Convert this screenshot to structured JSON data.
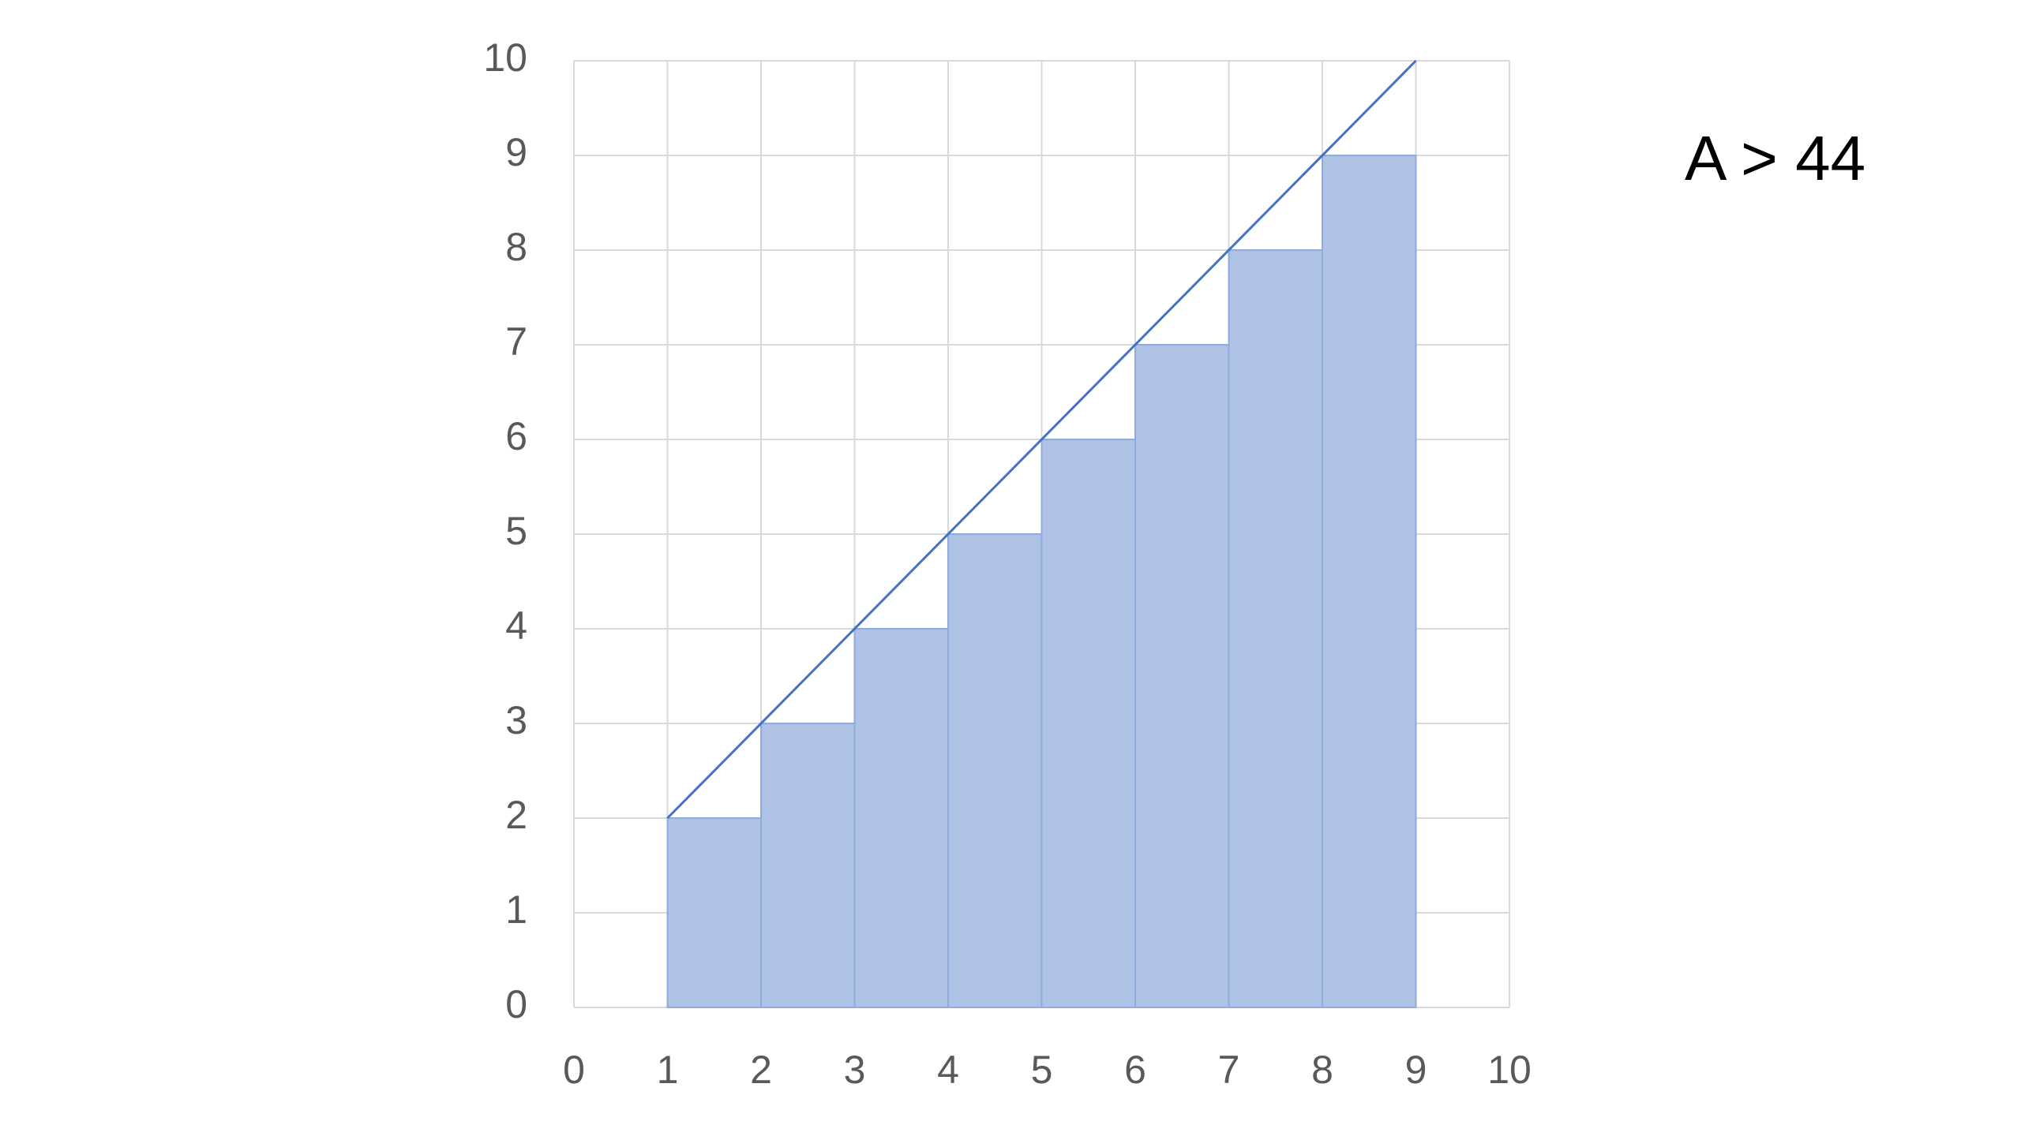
{
  "chart_data": {
    "type": "histogram",
    "bins": [
      1,
      2,
      3,
      4,
      5,
      6,
      7,
      8,
      9
    ],
    "values": [
      2,
      3,
      4,
      5,
      6,
      7,
      8,
      9
    ],
    "color": "#aec2e6",
    "line": {
      "type": "line",
      "x": [
        1,
        9
      ],
      "values": [
        2,
        10
      ],
      "color": "#4472c4"
    },
    "annotation": "A > 44",
    "xlim": [
      0,
      10
    ],
    "ylim": [
      0,
      10
    ],
    "xticks": [
      0,
      1,
      2,
      3,
      4,
      5,
      6,
      7,
      8,
      9,
      10
    ],
    "yticks": [
      0,
      1,
      2,
      3,
      4,
      5,
      6,
      7,
      8,
      9,
      10
    ],
    "grid": true
  }
}
